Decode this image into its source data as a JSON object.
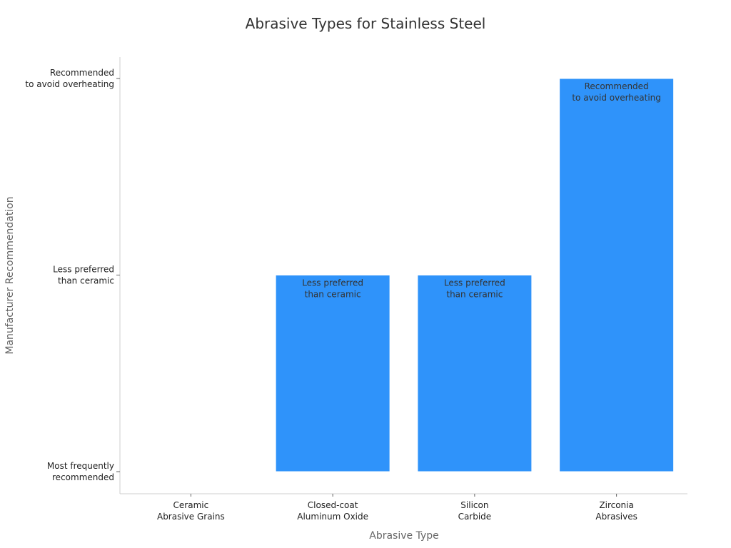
{
  "chart_data": {
    "type": "bar",
    "title": "Abrasive Types for Stainless Steel",
    "xlabel": "Abrasive Type",
    "ylabel": "Manufacturer Recommendation",
    "categories": [
      [
        "Ceramic",
        "Abrasive Grains"
      ],
      [
        "Closed-coat",
        "Aluminum Oxide"
      ],
      [
        "Silicon",
        "Carbide"
      ],
      [
        "Zirconia",
        "Abrasives"
      ]
    ],
    "values": [
      0,
      1,
      1,
      2
    ],
    "y_ticks": [
      {
        "value": 0,
        "label": [
          "Most frequently",
          "recommended"
        ]
      },
      {
        "value": 1,
        "label": [
          "Less preferred",
          "than ceramic"
        ]
      },
      {
        "value": 2,
        "label": [
          "Recommended",
          "to avoid overheating"
        ]
      }
    ],
    "bar_labels": [
      [],
      [
        "Less preferred",
        "than ceramic"
      ],
      [
        "Less preferred",
        "than ceramic"
      ],
      [
        "Recommended",
        "to avoid overheating"
      ]
    ],
    "ylim": [
      0,
      2
    ],
    "colors": {
      "bar": "#2f93fa",
      "bar_edge": "#ffffff"
    },
    "grid": false,
    "legend": "none"
  }
}
